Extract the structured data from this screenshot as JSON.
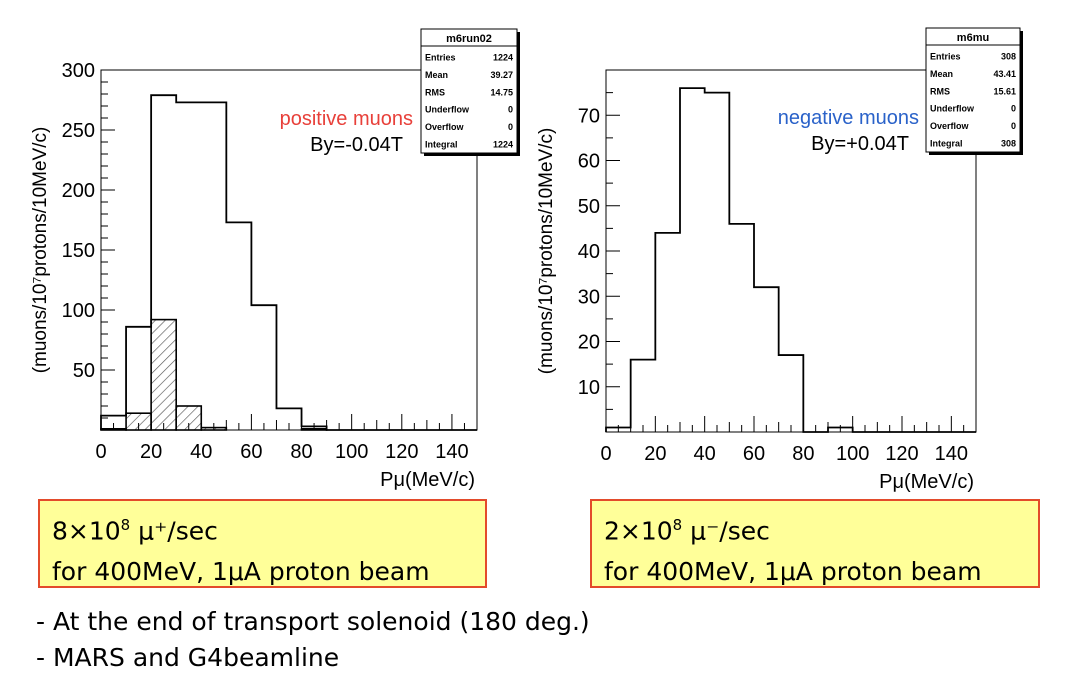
{
  "chart_data": [
    {
      "type": "bar",
      "subtype": "histogram",
      "ylabel": "(muons/10⁷protons/10MeV/c)",
      "xlabel": "Pμ(MeV/c)",
      "xlim": [
        0,
        150
      ],
      "ylim": [
        0,
        300
      ],
      "xticks": [
        "0",
        "20",
        "40",
        "60",
        "80",
        "100",
        "120",
        "140"
      ],
      "yticks": [
        "50",
        "100",
        "150",
        "200",
        "250",
        "300"
      ],
      "bin_width": 10,
      "series": [
        {
          "name": "",
          "style": "outline",
          "bins": [
            {
              "x0": 0,
              "x1": 10,
              "value": 12
            },
            {
              "x0": 10,
              "x1": 20,
              "value": 86
            },
            {
              "x0": 20,
              "x1": 30,
              "value": 279
            },
            {
              "x0": 30,
              "x1": 50,
              "value": 273
            },
            {
              "x0": 50,
              "x1": 60,
              "value": 173
            },
            {
              "x0": 60,
              "x1": 70,
              "value": 104
            },
            {
              "x0": 70,
              "x1": 80,
              "value": 18
            },
            {
              "x0": 80,
              "x1": 90,
              "value": 3
            },
            {
              "x0": 90,
              "x1": 150,
              "value": 0
            }
          ]
        },
        {
          "name": "",
          "style": "hatched",
          "bins": [
            {
              "x0": 0,
              "x1": 10,
              "value": 1
            },
            {
              "x0": 10,
              "x1": 20,
              "value": 14
            },
            {
              "x0": 20,
              "x1": 30,
              "value": 92
            },
            {
              "x0": 30,
              "x1": 40,
              "value": 20
            },
            {
              "x0": 40,
              "x1": 50,
              "value": 2
            },
            {
              "x0": 80,
              "x1": 90,
              "value": 1
            }
          ]
        }
      ],
      "annotation_title": "positive muons",
      "annotation_title_color": "#e8403a",
      "annotation_field": "By=-0.04T",
      "stats": {
        "name": "m6run02",
        "rows": [
          {
            "label": "Entries",
            "value": "1224"
          },
          {
            "label": "Mean",
            "value": "39.27"
          },
          {
            "label": "RMS",
            "value": "14.75"
          },
          {
            "label": "Underflow",
            "value": "0"
          },
          {
            "label": "Overflow",
            "value": "0"
          },
          {
            "label": "Integral",
            "value": "1224"
          }
        ]
      }
    },
    {
      "type": "bar",
      "subtype": "histogram",
      "ylabel": "(muons/10⁷protons/10MeV/c)",
      "xlabel": "Pμ(MeV/c)",
      "xlim": [
        0,
        150
      ],
      "ylim": [
        0,
        80
      ],
      "xticks": [
        "0",
        "20",
        "40",
        "60",
        "80",
        "100",
        "120",
        "140"
      ],
      "yticks": [
        "10",
        "20",
        "30",
        "40",
        "50",
        "60",
        "70"
      ],
      "bin_width": 10,
      "series": [
        {
          "name": "",
          "style": "outline",
          "bins": [
            {
              "x0": 0,
              "x1": 10,
              "value": 1
            },
            {
              "x0": 10,
              "x1": 20,
              "value": 16
            },
            {
              "x0": 20,
              "x1": 30,
              "value": 44
            },
            {
              "x0": 30,
              "x1": 40,
              "value": 76
            },
            {
              "x0": 40,
              "x1": 50,
              "value": 75
            },
            {
              "x0": 50,
              "x1": 60,
              "value": 46
            },
            {
              "x0": 60,
              "x1": 70,
              "value": 32
            },
            {
              "x0": 70,
              "x1": 80,
              "value": 17
            },
            {
              "x0": 80,
              "x1": 90,
              "value": 0
            },
            {
              "x0": 90,
              "x1": 100,
              "value": 1
            },
            {
              "x0": 100,
              "x1": 150,
              "value": 0
            }
          ]
        }
      ],
      "annotation_title": "negative muons",
      "annotation_title_color": "#2a62c9",
      "annotation_field": "By=+0.04T",
      "stats": {
        "name": "m6mu",
        "rows": [
          {
            "label": "Entries",
            "value": "308"
          },
          {
            "label": "Mean",
            "value": "43.41"
          },
          {
            "label": "RMS",
            "value": "15.61"
          },
          {
            "label": "Underflow",
            "value": "0"
          },
          {
            "label": "Overflow",
            "value": "0"
          },
          {
            "label": "Integral",
            "value": "308"
          }
        ]
      }
    }
  ],
  "boxes": [
    {
      "line1_prefix": "8×10",
      "line1_exp": "8",
      "line1_suffix": " μ⁺/sec",
      "line2": "for 400MeV, 1μA proton beam"
    },
    {
      "line1_prefix": "2×10",
      "line1_exp": "8",
      "line1_suffix": " μ⁻/sec",
      "line2": "for 400MeV, 1μA proton beam"
    }
  ],
  "notes": [
    "- At the end of transport solenoid (180 deg.)",
    "- MARS and G4beamline"
  ],
  "colors": {
    "box_fill": "#ffff99",
    "box_border": "#e34b2b"
  }
}
